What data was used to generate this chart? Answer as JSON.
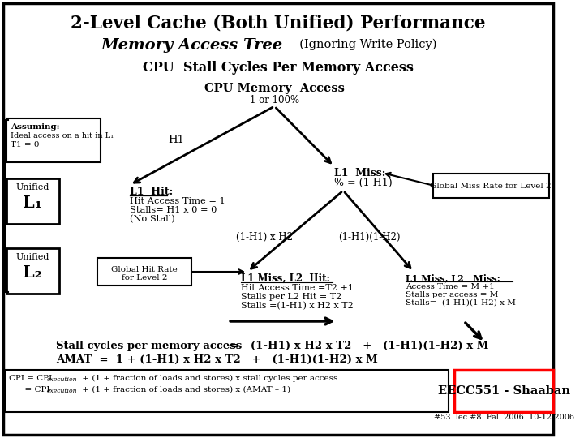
{
  "title1": "2-Level Cache (Both Unified) Performance",
  "title2": "Memory Access Tree",
  "title2_sub": "  (Ignoring Write Policy)",
  "title3": "CPU  Stall Cycles Per Memory Access",
  "bg_color": "#ffffff",
  "border_color": "#000000",
  "assuming_line1": "Assuming:",
  "assuming_line2": "Ideal access on a hit in L₁",
  "assuming_line3": "T1 = 0",
  "unified_l1_top": "Unified",
  "unified_l1_bot": "L₁",
  "unified_l2_top": "Unified",
  "unified_l2_bot": "L₂",
  "root_label": "CPU Memory  Access",
  "root_pct": "1 or 100%",
  "h1_label": "H1",
  "l1_hit_title": "L1  Hit:",
  "l1_hit_detail1": "Hit Access Time = 1",
  "l1_hit_detail2": "Stalls= H1 x 0 = 0",
  "l1_hit_detail3": "(No Stall)",
  "l1_miss_title": "L1  Miss:",
  "l1_miss_detail": "% = (1-H1)",
  "global_miss_label": "Global Miss Rate for Level 2",
  "left_branch": "(1-H1) x H2",
  "right_branch": "(1-H1)(1-H2)",
  "global_hit_line1": "Global Hit Rate",
  "global_hit_line2": "for Level 2",
  "l2_hit_title": "L1 Miss, L2  Hit:",
  "l2_hit_detail1": "Hit Access Time =T2 +1",
  "l2_hit_detail2": "Stalls per L2 Hit = T2",
  "l2_hit_detail3": "Stalls =(1-H1) x H2 x T2",
  "l2_miss_title": "L1 Miss, L2   Miss:",
  "l2_miss_detail1": "Access Time = M +1",
  "l2_miss_detail2": "Stalls per access = M",
  "l2_miss_detail3": "Stalls=  (1-H1)(1-H2) x M",
  "eq1_part1": "Stall cycles per memory access",
  "eq1_part2": "=   (1-H1) x H2 x T2   +   (1-H1)(1-H2) x M",
  "eq2": "AMAT  =  1 + (1-H1) x H2 x T2   +   (1-H1)(1-H2) x M",
  "cpi_line1_a": "CPI = CPI",
  "cpi_line1_sub": "execution",
  "cpi_line1_b": " + (1 + fraction of loads and stores) x stall cycles per access",
  "cpi_line2_a": "      = CPI",
  "cpi_line2_sub": "execution",
  "cpi_line2_b": " + (1 + fraction of loads and stores) x (AMAT – 1)",
  "eecc_label": "EECC551 - Shaaban",
  "footer": "#53  lec #8  Fall 2006  10-12-2006"
}
